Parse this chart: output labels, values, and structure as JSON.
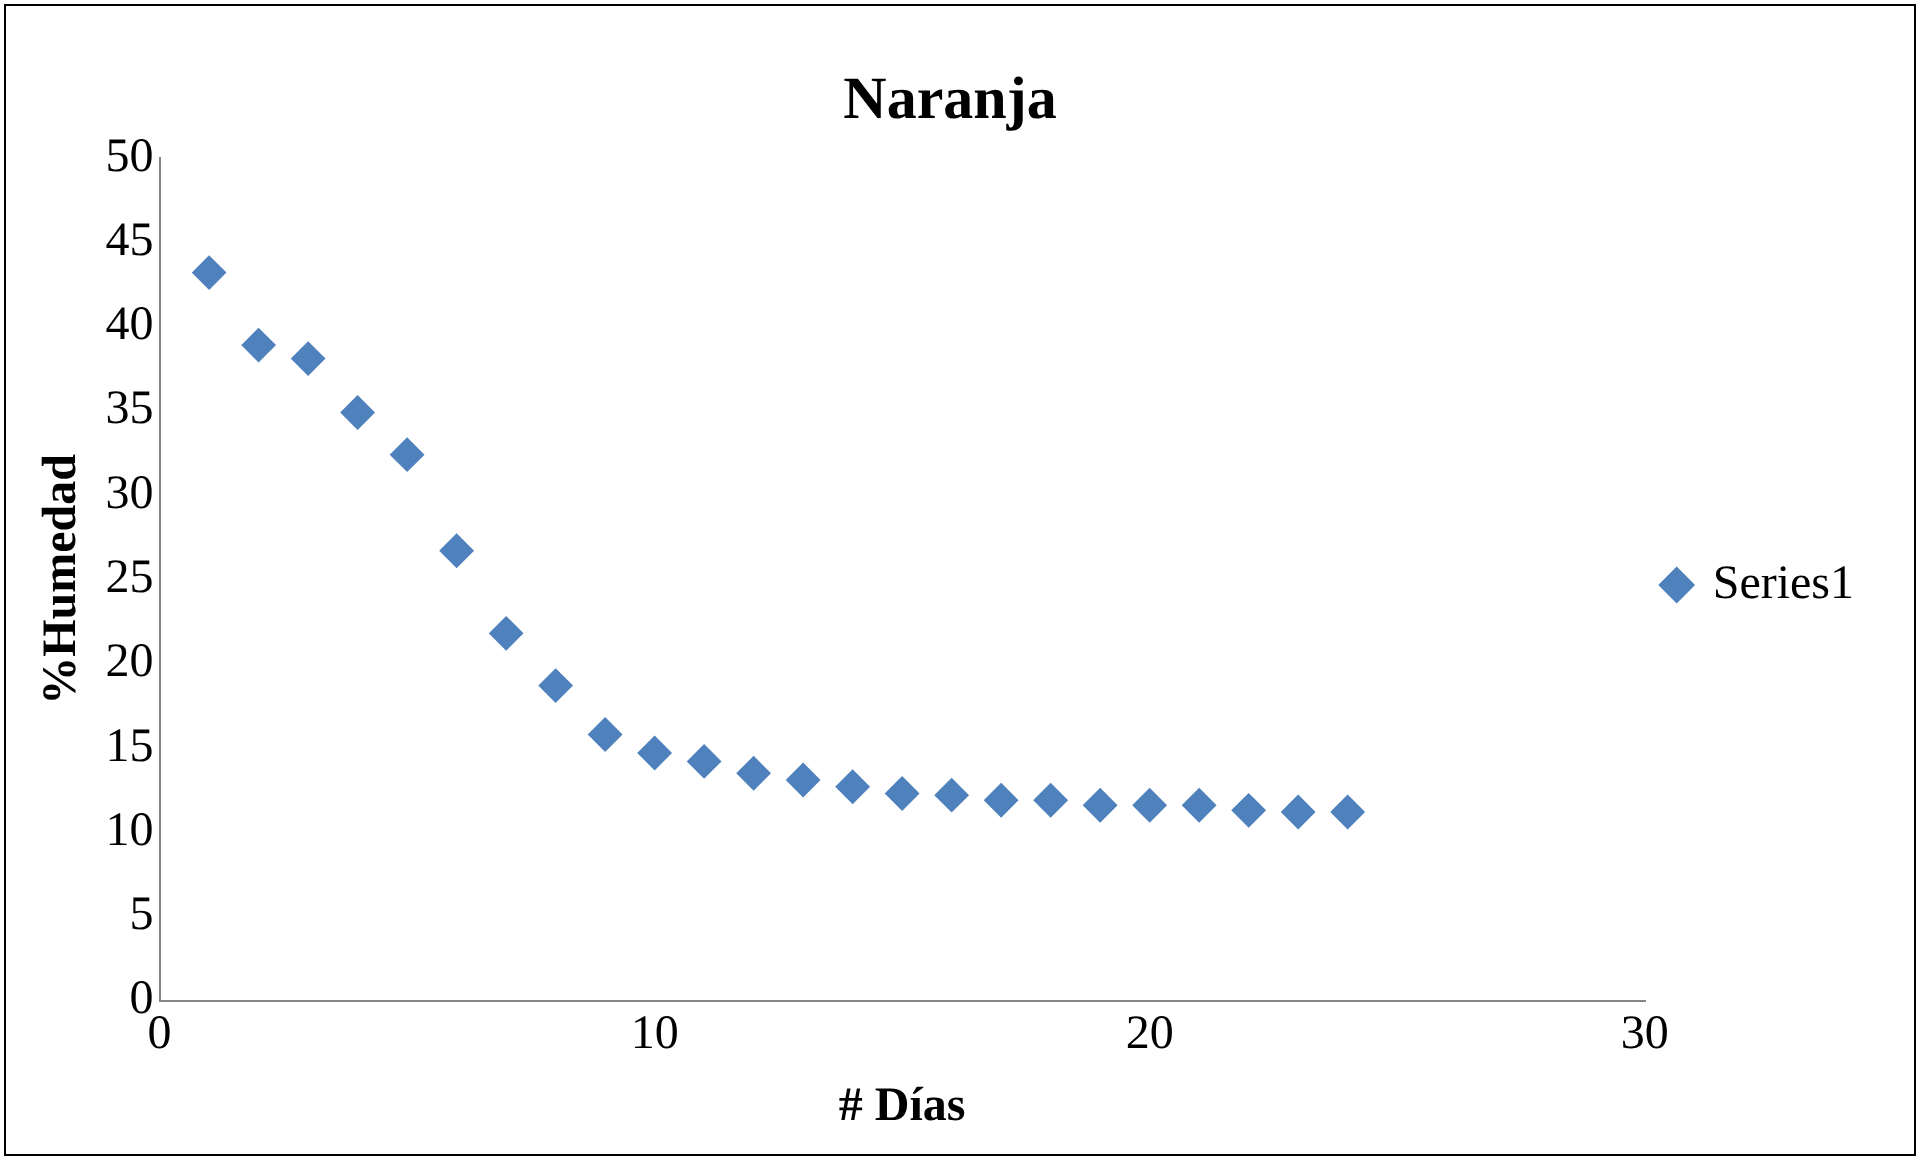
{
  "chart_data": {
    "type": "scatter",
    "title": "Naranja",
    "xlabel": "# Días",
    "ylabel": "%Humedad",
    "x": [
      1,
      2,
      3,
      4,
      5,
      6,
      7,
      8,
      9,
      10,
      11,
      12,
      13,
      14,
      15,
      16,
      17,
      18,
      19,
      20,
      21,
      22,
      23,
      24
    ],
    "series": [
      {
        "name": "Series1",
        "color": "#4f81bd",
        "values": [
          43.2,
          38.9,
          38.1,
          34.9,
          32.4,
          26.7,
          21.8,
          18.7,
          15.8,
          14.7,
          14.2,
          13.5,
          13.1,
          12.7,
          12.3,
          12.2,
          11.9,
          11.9,
          11.6,
          11.6,
          11.6,
          11.3,
          11.2,
          11.2
        ]
      }
    ],
    "xlim": [
      0,
      30
    ],
    "xticks": [
      0,
      10,
      20,
      30
    ],
    "ylim": [
      0,
      50
    ],
    "yticks": [
      0,
      5,
      10,
      15,
      20,
      25,
      30,
      35,
      40,
      45,
      50
    ],
    "grid": false,
    "legend": "right",
    "marker": "diamond"
  }
}
